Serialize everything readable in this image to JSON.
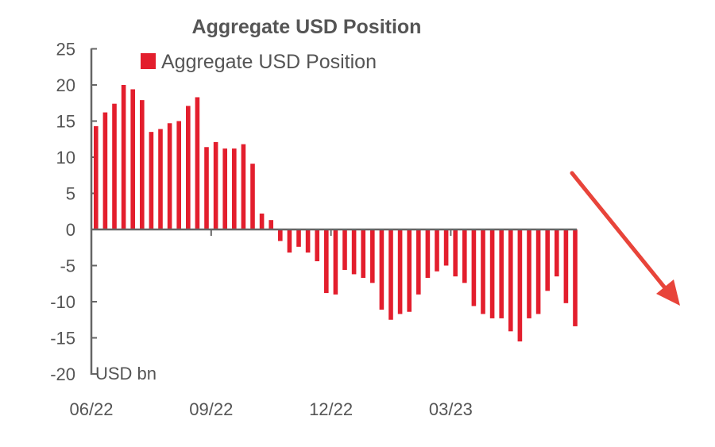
{
  "chart_data": {
    "type": "bar",
    "title": "Aggregate USD Position",
    "legend": [
      {
        "label": "Aggregate USD Position",
        "color": "#e31e2d"
      }
    ],
    "legend_position": "top-center",
    "ylabel": "USD bn",
    "ylim": [
      -20,
      25
    ],
    "yticks": [
      "25",
      "20",
      "15",
      "10",
      "5",
      "0",
      "-5",
      "-10",
      "-15",
      "-20"
    ],
    "ytick_values": [
      25,
      20,
      15,
      10,
      5,
      0,
      -5,
      -10,
      -15,
      -20
    ],
    "xticks": [
      "06/22",
      "09/22",
      "12/22",
      "03/23"
    ],
    "xtick_indices": [
      0,
      13,
      26,
      39
    ],
    "grid": false,
    "bar_color": "#e31e2d",
    "values": [
      14.3,
      16.2,
      17.4,
      20.0,
      19.4,
      17.9,
      13.5,
      13.9,
      14.7,
      15.0,
      17.1,
      18.3,
      11.4,
      12.1,
      11.2,
      11.2,
      11.8,
      9.1,
      2.2,
      1.3,
      -1.6,
      -3.2,
      -2.4,
      -3.2,
      -4.4,
      -8.8,
      -9.0,
      -5.6,
      -6.2,
      -6.7,
      -7.4,
      -11.1,
      -12.5,
      -11.7,
      -11.4,
      -9.0,
      -6.7,
      -5.8,
      -5.0,
      -6.5,
      -7.4,
      -10.6,
      -11.7,
      -12.3,
      -12.3,
      -14.1,
      -15.5,
      -12.3,
      -11.7,
      -8.5,
      -6.5,
      -10.2,
      -13.4
    ],
    "annotation": {
      "type": "arrow",
      "direction": "down-right",
      "color": "#e8443a"
    }
  }
}
